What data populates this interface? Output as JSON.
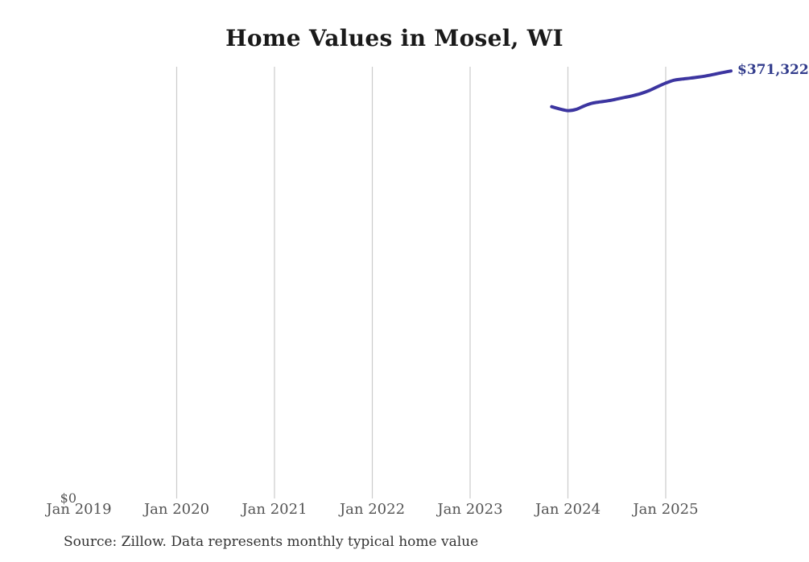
{
  "page": {
    "background": "#ffffff"
  },
  "chart_data": {
    "type": "line",
    "title": "Home Values in Mosel, WI",
    "source_note": "Source: Zillow. Data represents monthly typical home value",
    "legend": "none",
    "grid": "vertical-only",
    "ylim": [
      0,
      375000
    ],
    "y_tick_labels": [
      "$0"
    ],
    "x_tick_labels": [
      "Jan 2019",
      "Jan 2020",
      "Jan 2021",
      "Jan 2022",
      "Jan 2023",
      "Jan 2024",
      "Jan 2025"
    ],
    "gridline_years": [
      2020,
      2021,
      2022,
      2023,
      2024,
      2025
    ],
    "end_label": "$371,322",
    "series": [
      {
        "name": "Monthly typical home value",
        "x": [
          "2023-11",
          "2023-12",
          "2024-01",
          "2024-02",
          "2024-03",
          "2024-04",
          "2024-05",
          "2024-06",
          "2024-07",
          "2024-08",
          "2024-09",
          "2024-10",
          "2024-11",
          "2024-12",
          "2025-01",
          "2025-02",
          "2025-03",
          "2025-04",
          "2025-05",
          "2025-06",
          "2025-07",
          "2025-08",
          "2025-09"
        ],
        "values": [
          340300,
          338300,
          336900,
          337900,
          341000,
          343400,
          344500,
          345500,
          346900,
          348400,
          349900,
          351800,
          354400,
          357700,
          360800,
          363300,
          364300,
          365100,
          366000,
          367100,
          368500,
          370000,
          371322
        ]
      }
    ],
    "colors": {
      "line": "#3c35a0",
      "end_label": "#323c8c",
      "gridline": "#cccccc",
      "title": "#1a1a1a",
      "axis_label": "#545454",
      "source": "#333333"
    }
  }
}
